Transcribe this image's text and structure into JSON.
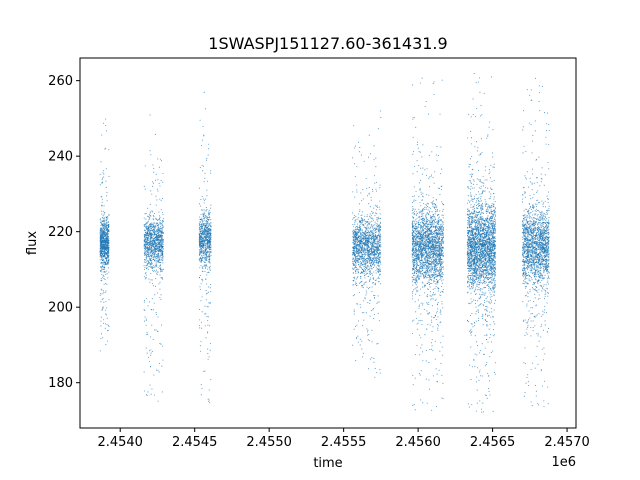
{
  "chart_data": {
    "type": "scatter",
    "title": "1SWASPJ151127.60-361431.9",
    "xlabel": "time",
    "ylabel": "flux",
    "x_offset_label": "1e6",
    "xlim": [
      2453730,
      2457060
    ],
    "ylim": [
      168,
      266
    ],
    "x_ticks": [
      2454000,
      2454500,
      2455000,
      2455500,
      2456000,
      2456500,
      2457000
    ],
    "x_tick_labels": [
      "2.4540",
      "2.4545",
      "2.4550",
      "2.4555",
      "2.4560",
      "2.4565",
      "2.4570"
    ],
    "y_ticks": [
      180,
      200,
      220,
      240,
      260
    ],
    "y_tick_labels": [
      "180",
      "200",
      "220",
      "240",
      "260"
    ],
    "grid": false,
    "marker_color": "#1f77b4",
    "seasons": [
      {
        "x_start": 2453865,
        "x_end": 2453925,
        "center": 217,
        "spread": 6,
        "tail_low": 185,
        "tail_high": 251,
        "density": 900
      },
      {
        "x_start": 2454160,
        "x_end": 2454290,
        "center": 217,
        "spread": 6,
        "tail_low": 175,
        "tail_high": 253,
        "density": 1100
      },
      {
        "x_start": 2454530,
        "x_end": 2454610,
        "center": 218,
        "spread": 6,
        "tail_low": 174,
        "tail_high": 258,
        "density": 800
      },
      {
        "x_start": 2455560,
        "x_end": 2455750,
        "center": 216,
        "spread": 7,
        "tail_low": 180,
        "tail_high": 257,
        "density": 1500
      },
      {
        "x_start": 2455960,
        "x_end": 2456170,
        "center": 216,
        "spread": 9,
        "tail_low": 172,
        "tail_high": 262,
        "density": 2200
      },
      {
        "x_start": 2456330,
        "x_end": 2456520,
        "center": 216,
        "spread": 10,
        "tail_low": 172,
        "tail_high": 262,
        "density": 2600
      },
      {
        "x_start": 2456700,
        "x_end": 2456880,
        "center": 216,
        "spread": 9,
        "tail_low": 173,
        "tail_high": 263,
        "density": 1800
      }
    ]
  }
}
